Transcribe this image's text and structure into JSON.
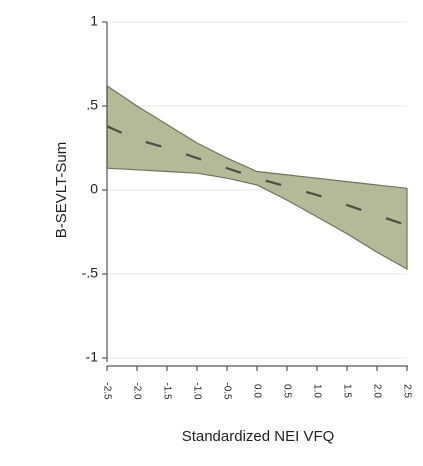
{
  "chart_data": {
    "type": "line",
    "title": "",
    "xlabel": "Standardized NEI VFQ",
    "ylabel": "B-SEVLT-Sum",
    "xlim": [
      -2.5,
      2.5
    ],
    "ylim": [
      -1,
      1
    ],
    "x_ticks": [
      -2.5,
      -2.0,
      -1.5,
      -1.0,
      -0.5,
      0.0,
      0.5,
      1.0,
      1.5,
      2.0,
      2.5
    ],
    "x_tick_labels": [
      "-2.5",
      "-2.0",
      "-1.5",
      "-1.0",
      "-0.5",
      "0.0",
      "0.5",
      "1.0",
      "1.5",
      "2.0",
      "2.5"
    ],
    "y_ticks": [
      -1,
      -0.5,
      0,
      0.5,
      1
    ],
    "y_tick_labels": [
      "-1",
      "-.5",
      "0",
      ".5",
      "1"
    ],
    "grid": true,
    "series": [
      {
        "x": [
          -2.5,
          -2.0,
          -1.5,
          -1.0,
          -0.5,
          0.0,
          0.5,
          1.0,
          1.5,
          2.0,
          2.5
        ],
        "y": [
          0.38,
          0.3,
          0.25,
          0.19,
          0.13,
          0.07,
          0.02,
          -0.03,
          -0.09,
          -0.15,
          -0.21
        ],
        "lower": [
          0.13,
          0.12,
          0.11,
          0.1,
          0.07,
          0.03,
          -0.06,
          -0.16,
          -0.26,
          -0.37,
          -0.47
        ],
        "upper": [
          0.62,
          0.5,
          0.39,
          0.28,
          0.19,
          0.11,
          0.09,
          0.07,
          0.05,
          0.03,
          0.01
        ]
      }
    ],
    "colors": {
      "band_fill": "#a7ae86",
      "band_stroke": "#6f745f",
      "line": "#4b4f44",
      "axis": "#555555",
      "grid": "#e6e6e6"
    }
  }
}
